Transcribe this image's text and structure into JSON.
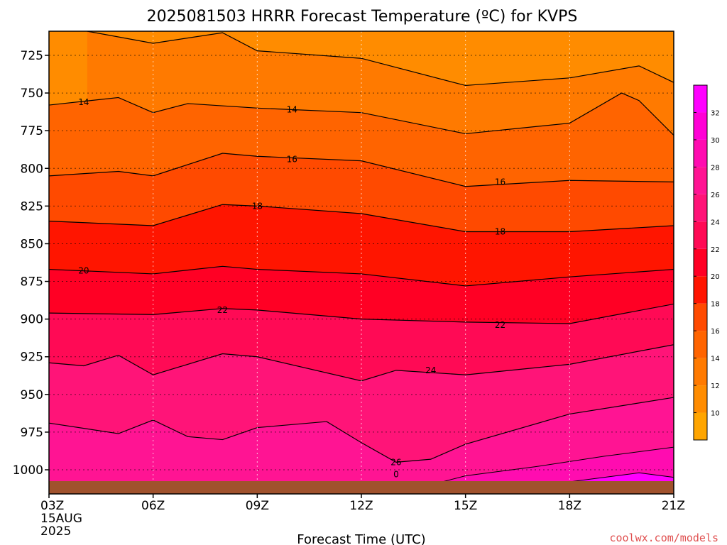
{
  "chart_data": {
    "type": "contour",
    "title": "2025081503 HRRR Forecast Temperature (ºC) for KVPS",
    "xlabel": "Forecast Time (UTC)",
    "ylabel": "",
    "credit": "coolwx.com/models",
    "credit_color": "#e05050",
    "x_range_hours": [
      0,
      18
    ],
    "x_ticks": [
      {
        "hour": 0,
        "label": "03Z",
        "sub": [
          "15AUG",
          "2025"
        ]
      },
      {
        "hour": 3,
        "label": "06Z",
        "sub": []
      },
      {
        "hour": 6,
        "label": "09Z",
        "sub": []
      },
      {
        "hour": 9,
        "label": "12Z",
        "sub": []
      },
      {
        "hour": 12,
        "label": "15Z",
        "sub": []
      },
      {
        "hour": 15,
        "label": "18Z",
        "sub": []
      },
      {
        "hour": 18,
        "label": "21Z",
        "sub": []
      }
    ],
    "y_range_hpa": [
      1016,
      709
    ],
    "y_ticks": [
      725,
      750,
      775,
      800,
      825,
      850,
      875,
      900,
      925,
      950,
      975,
      1000
    ],
    "grid": true,
    "ground_color": "#a0522d",
    "colorbar": {
      "levels": [
        10,
        12,
        14,
        16,
        18,
        20,
        22,
        24,
        26,
        28,
        30,
        32
      ],
      "colors": [
        "#ffa500",
        "#ff8c00",
        "#ff7a00",
        "#ff6400",
        "#ff4a00",
        "#ff1500",
        "#ff0024",
        "#ff0a55",
        "#ff1478",
        "#ff1493",
        "#ff0cb0",
        "#ff00d6",
        "#ff00ff"
      ]
    },
    "contours": [
      {
        "level": 12,
        "points": [
          [
            1.1,
            709
          ],
          [
            3,
            717
          ],
          [
            5,
            710
          ],
          [
            6,
            722
          ],
          [
            9,
            727
          ],
          [
            12,
            745
          ],
          [
            15,
            740
          ],
          [
            17,
            732
          ],
          [
            18,
            743
          ]
        ]
      },
      {
        "level": 14,
        "points": [
          [
            0,
            758
          ],
          [
            2,
            753
          ],
          [
            3,
            763
          ],
          [
            4,
            757
          ],
          [
            6,
            760
          ],
          [
            9,
            763
          ],
          [
            12,
            777
          ],
          [
            15,
            770
          ],
          [
            16.5,
            750
          ],
          [
            17,
            755
          ],
          [
            18,
            778
          ]
        ]
      },
      {
        "level": 16,
        "points": [
          [
            0,
            805
          ],
          [
            2,
            802
          ],
          [
            3,
            805
          ],
          [
            5,
            790
          ],
          [
            6,
            792
          ],
          [
            9,
            795
          ],
          [
            12,
            812
          ],
          [
            15,
            808
          ],
          [
            18,
            809
          ]
        ]
      },
      {
        "level": 18,
        "points": [
          [
            0,
            835
          ],
          [
            3,
            838
          ],
          [
            5,
            824
          ],
          [
            6,
            825
          ],
          [
            9,
            830
          ],
          [
            12,
            842
          ],
          [
            15,
            842
          ],
          [
            18,
            838
          ]
        ]
      },
      {
        "level": 20,
        "points": [
          [
            0,
            867
          ],
          [
            3,
            870
          ],
          [
            5,
            865
          ],
          [
            6,
            867
          ],
          [
            9,
            870
          ],
          [
            12,
            878
          ],
          [
            15,
            872
          ],
          [
            18,
            867
          ]
        ]
      },
      {
        "level": 22,
        "points": [
          [
            0,
            896
          ],
          [
            3,
            897
          ],
          [
            5,
            893
          ],
          [
            6,
            894
          ],
          [
            9,
            900
          ],
          [
            12,
            902
          ],
          [
            15,
            903
          ],
          [
            18,
            890
          ]
        ]
      },
      {
        "level": 24,
        "points": [
          [
            0,
            929
          ],
          [
            1,
            931
          ],
          [
            2,
            924
          ],
          [
            3,
            937
          ],
          [
            5,
            923
          ],
          [
            6,
            925
          ],
          [
            9,
            941
          ],
          [
            10,
            934
          ],
          [
            12,
            937
          ],
          [
            15,
            930
          ],
          [
            18,
            917
          ]
        ]
      },
      {
        "level": 26,
        "points": [
          [
            0,
            969
          ],
          [
            2,
            976
          ],
          [
            3,
            967
          ],
          [
            4,
            978
          ],
          [
            5,
            980
          ],
          [
            6,
            972
          ],
          [
            8,
            968
          ],
          [
            9,
            982
          ],
          [
            10,
            995
          ],
          [
            11,
            993
          ],
          [
            12,
            983
          ],
          [
            15,
            963
          ],
          [
            18,
            952
          ]
        ]
      }
    ],
    "contour_labels": [
      {
        "text": "14",
        "hour": 1.0,
        "hpa": 756
      },
      {
        "text": "14",
        "hour": 7.0,
        "hpa": 761
      },
      {
        "text": "16",
        "hour": 7.0,
        "hpa": 794
      },
      {
        "text": "16",
        "hour": 13.0,
        "hpa": 809
      },
      {
        "text": "18",
        "hour": 6.0,
        "hpa": 825
      },
      {
        "text": "18",
        "hour": 13.0,
        "hpa": 842
      },
      {
        "text": "20",
        "hour": 1.0,
        "hpa": 868
      },
      {
        "text": "22",
        "hour": 5.0,
        "hpa": 894
      },
      {
        "text": "22",
        "hour": 13.0,
        "hpa": 904
      },
      {
        "text": "24",
        "hour": 11.0,
        "hpa": 934
      },
      {
        "text": "26",
        "hour": 10.0,
        "hpa": 995
      },
      {
        "text": "0",
        "hour": 10.0,
        "hpa": 1003
      }
    ]
  }
}
